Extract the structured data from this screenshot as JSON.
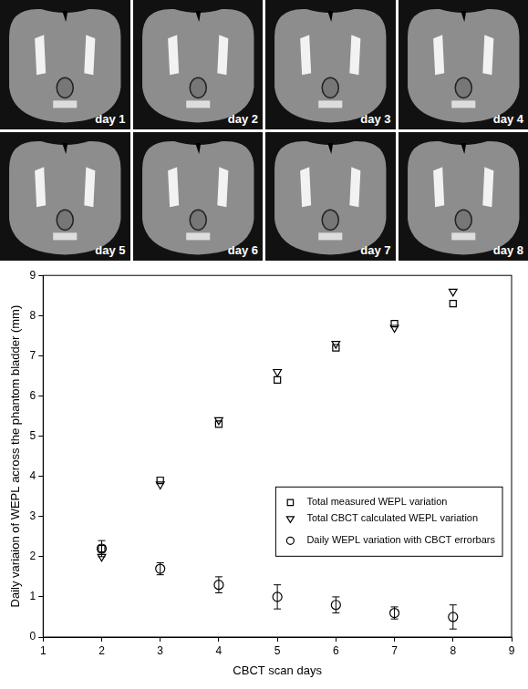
{
  "images": {
    "panels": [
      "day 1",
      "day 2",
      "day 3",
      "day 4",
      "day 5",
      "day 6",
      "day 7",
      "day 8"
    ]
  },
  "chart_data": {
    "type": "scatter",
    "x_label": "CBCT scan days",
    "y_label": "Daily variaion of WEPL across the phantom bladder (mm)",
    "xlim": [
      1,
      9
    ],
    "xticks": [
      1,
      2,
      3,
      4,
      5,
      6,
      7,
      8,
      9
    ],
    "ylim": [
      0,
      9
    ],
    "yticks": [
      0,
      1,
      2,
      3,
      4,
      5,
      6,
      7,
      8,
      9
    ],
    "grid": false,
    "legend": "right",
    "x": [
      2,
      3,
      4,
      5,
      6,
      7,
      8
    ],
    "series": [
      {
        "name": "Total measured WEPL variation",
        "color": "#000000",
        "marker": "square",
        "values": [
          2.2,
          3.9,
          5.3,
          6.4,
          7.2,
          7.8,
          8.3
        ]
      },
      {
        "name": "Total CBCT calculated WEPL variation",
        "color": "#000000",
        "marker": "triangle-down",
        "values": [
          2.0,
          3.8,
          5.4,
          6.6,
          7.3,
          7.7,
          8.6
        ]
      },
      {
        "name": "Daily WEPL variation with CBCT errorbars",
        "color": "#000000",
        "marker": "circle",
        "values": [
          2.2,
          1.7,
          1.3,
          1.0,
          0.8,
          0.6,
          0.5
        ],
        "errors": [
          0.2,
          0.15,
          0.2,
          0.3,
          0.2,
          0.15,
          0.3
        ]
      }
    ]
  }
}
